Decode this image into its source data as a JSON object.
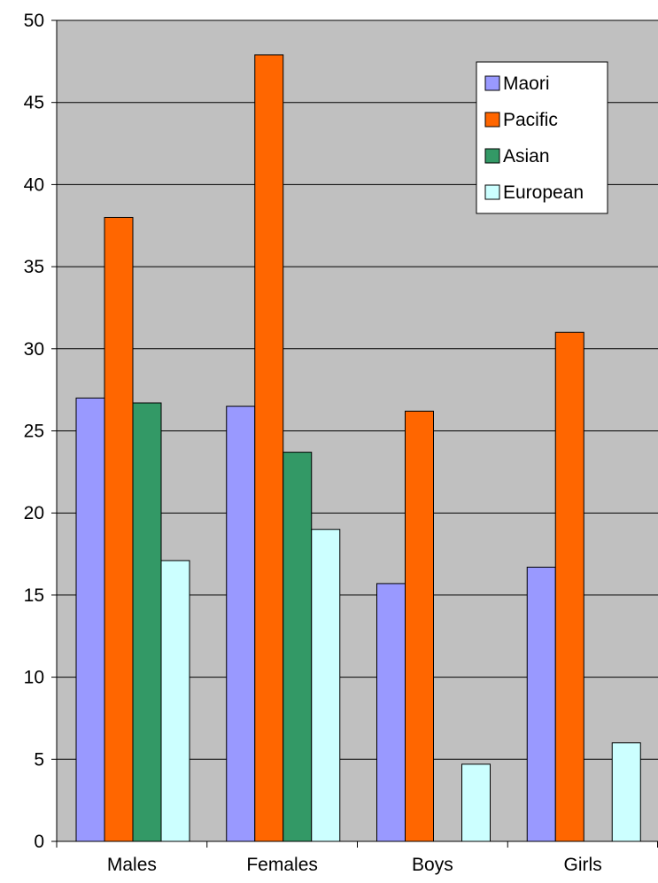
{
  "chart_data": {
    "type": "bar",
    "title": "",
    "xlabel": "",
    "ylabel": "",
    "categories": [
      "Males",
      "Females",
      "Boys",
      "Girls"
    ],
    "series": [
      {
        "name": "Maori",
        "values": [
          27.0,
          26.5,
          15.7,
          16.7
        ],
        "color": "#9999ff"
      },
      {
        "name": "Pacific",
        "values": [
          38.0,
          47.9,
          26.2,
          31.0
        ],
        "color": "#ff6600"
      },
      {
        "name": "Asian",
        "values": [
          26.7,
          23.7,
          null,
          null
        ],
        "color": "#339966"
      },
      {
        "name": "European",
        "values": [
          17.1,
          19.0,
          4.7,
          6.0
        ],
        "color": "#ccffff"
      }
    ],
    "ylim": [
      0,
      50
    ],
    "yticks": [
      "0",
      "5",
      "10",
      "15",
      "20",
      "25",
      "30",
      "35",
      "40",
      "45",
      "50"
    ],
    "grid": true,
    "plot_background": "#c0c0c0",
    "legend_position": "top-right"
  }
}
